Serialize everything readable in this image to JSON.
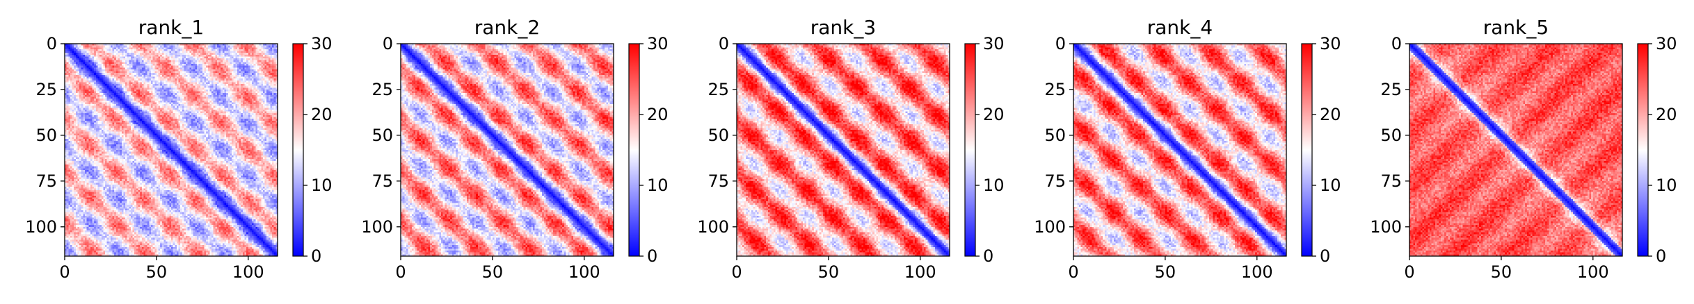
{
  "chart_data": [
    {
      "type": "heatmap",
      "title": "rank_1",
      "xlabel": "",
      "ylabel": "",
      "size": 116,
      "xlim": [
        0,
        116
      ],
      "ylim": [
        116,
        0
      ],
      "x_ticks": [
        "0",
        "50",
        "100"
      ],
      "x_tick_values": [
        0,
        50,
        100
      ],
      "y_ticks": [
        "0",
        "25",
        "50",
        "75",
        "100"
      ],
      "y_tick_values": [
        0,
        25,
        50,
        75,
        100
      ],
      "colorbar": {
        "ticks": [
          "0",
          "10",
          "20",
          "30"
        ],
        "tick_values": [
          0,
          10,
          20,
          30
        ],
        "range": [
          0,
          30
        ]
      },
      "colormap": [
        "#0000ff",
        "#ffffff",
        "#ff0000"
      ],
      "band_period": 28,
      "off_diagonal_mean": 16,
      "band_amplitude": 6
    },
    {
      "type": "heatmap",
      "title": "rank_2",
      "xlabel": "",
      "ylabel": "",
      "size": 116,
      "xlim": [
        0,
        116
      ],
      "ylim": [
        116,
        0
      ],
      "x_ticks": [
        "0",
        "50",
        "100"
      ],
      "x_tick_values": [
        0,
        50,
        100
      ],
      "y_ticks": [
        "0",
        "25",
        "50",
        "75",
        "100"
      ],
      "y_tick_values": [
        0,
        25,
        50,
        75,
        100
      ],
      "colorbar": {
        "ticks": [
          "0",
          "10",
          "20",
          "30"
        ],
        "tick_values": [
          0,
          10,
          20,
          30
        ],
        "range": [
          0,
          30
        ]
      },
      "colormap": [
        "#0000ff",
        "#ffffff",
        "#ff0000"
      ],
      "band_period": 28,
      "off_diagonal_mean": 18,
      "band_amplitude": 7
    },
    {
      "type": "heatmap",
      "title": "rank_3",
      "xlabel": "",
      "ylabel": "",
      "size": 116,
      "xlim": [
        0,
        116
      ],
      "ylim": [
        116,
        0
      ],
      "x_ticks": [
        "0",
        "50",
        "100"
      ],
      "x_tick_values": [
        0,
        50,
        100
      ],
      "y_ticks": [
        "0",
        "25",
        "50",
        "75",
        "100"
      ],
      "y_tick_values": [
        0,
        25,
        50,
        75,
        100
      ],
      "colorbar": {
        "ticks": [
          "0",
          "10",
          "20",
          "30"
        ],
        "tick_values": [
          0,
          10,
          20,
          30
        ],
        "range": [
          0,
          30
        ]
      },
      "colormap": [
        "#0000ff",
        "#ffffff",
        "#ff0000"
      ],
      "band_period": 28,
      "off_diagonal_mean": 21,
      "band_amplitude": 7
    },
    {
      "type": "heatmap",
      "title": "rank_4",
      "xlabel": "",
      "ylabel": "",
      "size": 116,
      "xlim": [
        0,
        116
      ],
      "ylim": [
        116,
        0
      ],
      "x_ticks": [
        "0",
        "50",
        "100"
      ],
      "x_tick_values": [
        0,
        50,
        100
      ],
      "y_ticks": [
        "0",
        "25",
        "50",
        "75",
        "100"
      ],
      "y_tick_values": [
        0,
        25,
        50,
        75,
        100
      ],
      "colorbar": {
        "ticks": [
          "0",
          "10",
          "20",
          "30"
        ],
        "tick_values": [
          0,
          10,
          20,
          30
        ],
        "range": [
          0,
          30
        ]
      },
      "colormap": [
        "#0000ff",
        "#ffffff",
        "#ff0000"
      ],
      "band_period": 28,
      "off_diagonal_mean": 20,
      "band_amplitude": 7
    },
    {
      "type": "heatmap",
      "title": "rank_5",
      "xlabel": "",
      "ylabel": "",
      "size": 116,
      "xlim": [
        0,
        116
      ],
      "ylim": [
        116,
        0
      ],
      "x_ticks": [
        "0",
        "50",
        "100"
      ],
      "x_tick_values": [
        0,
        50,
        100
      ],
      "y_ticks": [
        "0",
        "25",
        "50",
        "75",
        "100"
      ],
      "y_tick_values": [
        0,
        25,
        50,
        75,
        100
      ],
      "colorbar": {
        "ticks": [
          "0",
          "10",
          "20",
          "30"
        ],
        "tick_values": [
          0,
          10,
          20,
          30
        ],
        "range": [
          0,
          30
        ]
      },
      "colormap": [
        "#0000ff",
        "#ffffff",
        "#ff0000"
      ],
      "band_period": 0,
      "off_diagonal_mean": 25,
      "band_amplitude": 3
    }
  ]
}
